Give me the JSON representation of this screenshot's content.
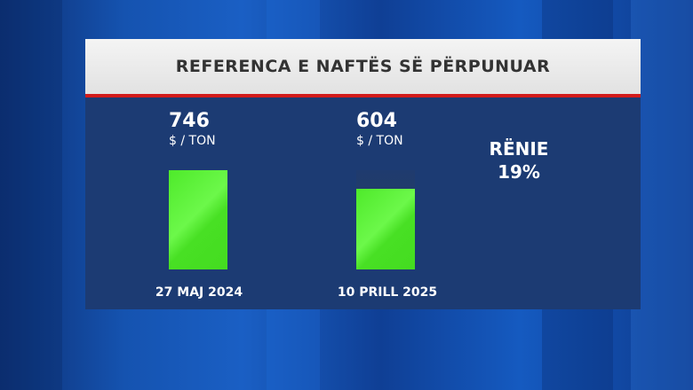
{
  "chart_data": {
    "type": "bar",
    "title": "REFERENCA E NAFTËS SË PËRPUNUAR",
    "categories": [
      "27 MAJ 2024",
      "10 PRILL 2025"
    ],
    "values": [
      746,
      604
    ],
    "value_labels": [
      "746",
      "604"
    ],
    "unit": "$ / TON",
    "ylim": [
      0,
      746
    ],
    "annotation": {
      "label": "RËNIE",
      "value": "19%"
    },
    "colors": {
      "bar": "#4eea2a",
      "header_bg": "#ececec",
      "accent_line": "#d21b1b",
      "panel_bg": "#1c3b73"
    }
  }
}
